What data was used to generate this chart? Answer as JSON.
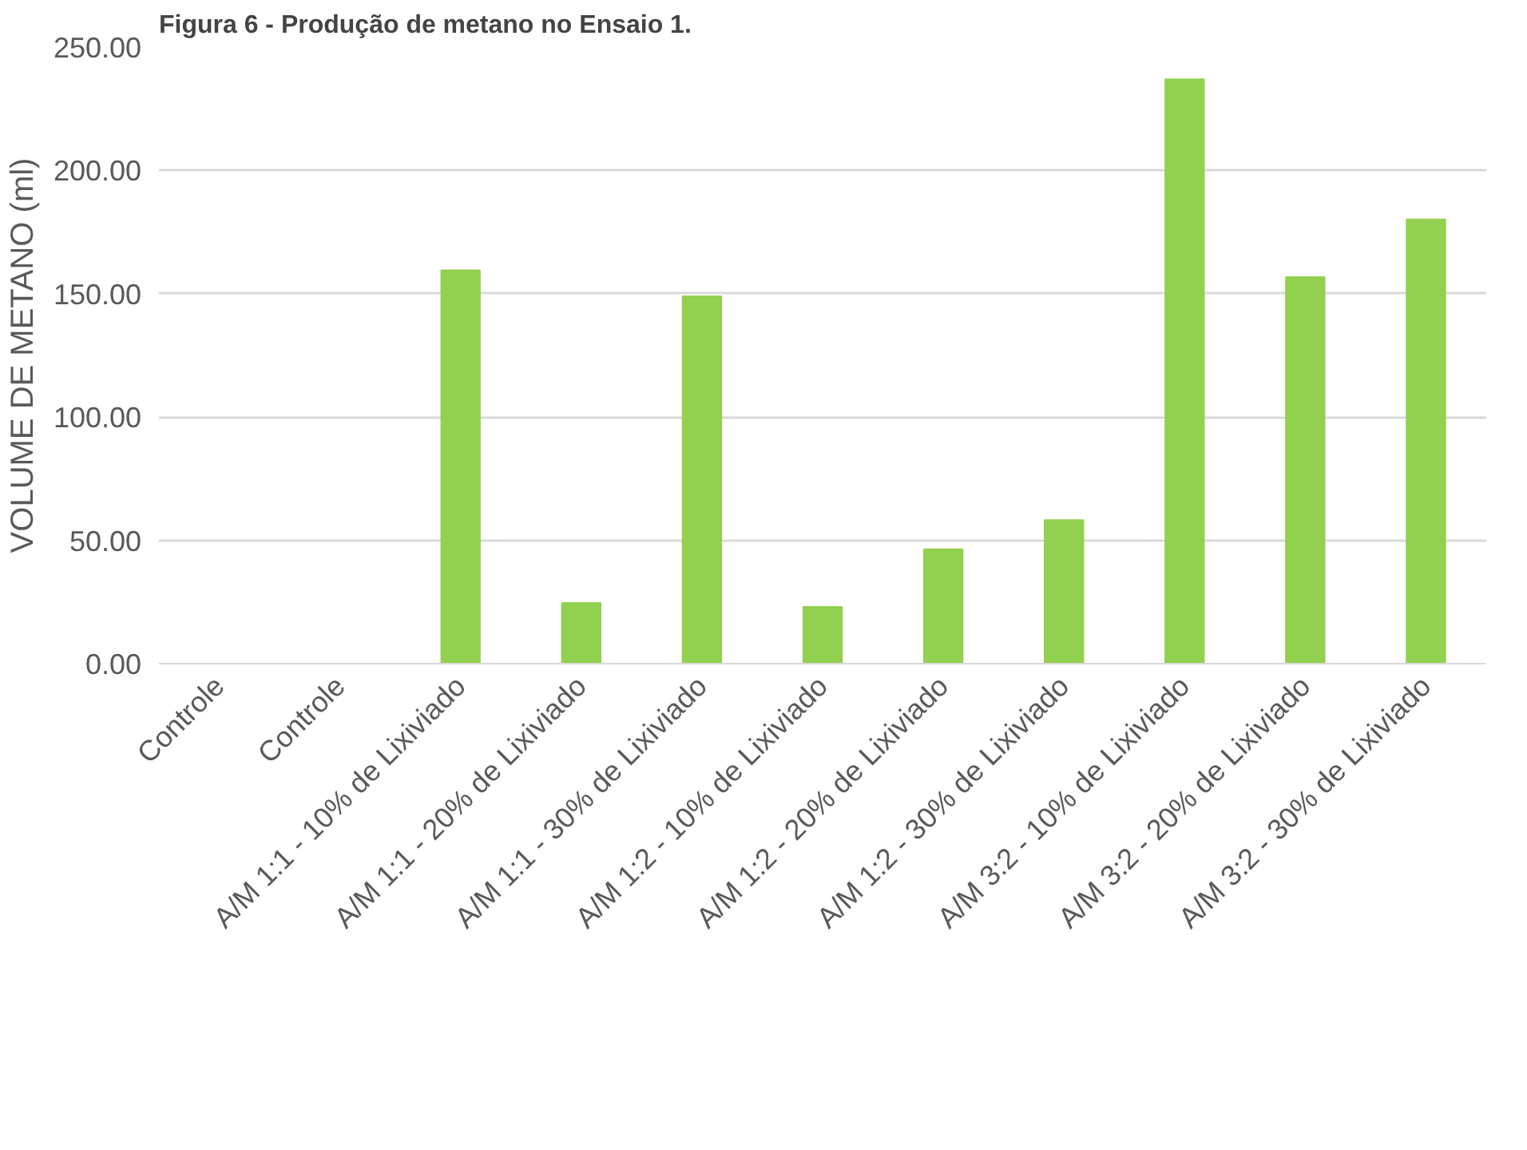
{
  "chart_data": {
    "type": "bar",
    "title": "Figura 6 - Produção de metano no Ensaio 1.",
    "ylabel": "VOLUME DE METANO (ml)",
    "categories": [
      "Controle",
      "Controle",
      "A/M 1:1 - 10% de Lixiviado",
      "A/M 1:1 - 20% de Lixiviado",
      "A/M 1:1 - 30% de Lixiviado",
      "A/M 1:2 - 10% de Lixiviado",
      "A/M 1:2 - 20% de Lixiviado",
      "A/M 1:2 - 30% de Lixiviado",
      "A/M 3:2 - 10% de Lixiviado",
      "A/M 3:2 - 20% de Lixiviado",
      "A/M 3:2 - 30% de Lixiviado"
    ],
    "values": [
      0,
      0,
      159.5,
      24.6,
      149,
      23,
      46.4,
      58.2,
      237,
      156.7,
      180.1
    ],
    "color": "#92d050",
    "ylim": [
      0,
      250
    ],
    "yticks": [
      {
        "value": 0,
        "label": "0.00"
      },
      {
        "value": 50,
        "label": "50.00"
      },
      {
        "value": 100,
        "label": "100.00"
      },
      {
        "value": 150,
        "label": "150.00"
      },
      {
        "value": 200,
        "label": "200.00"
      },
      {
        "value": 250,
        "label": "250.00"
      }
    ],
    "grid": "y"
  }
}
